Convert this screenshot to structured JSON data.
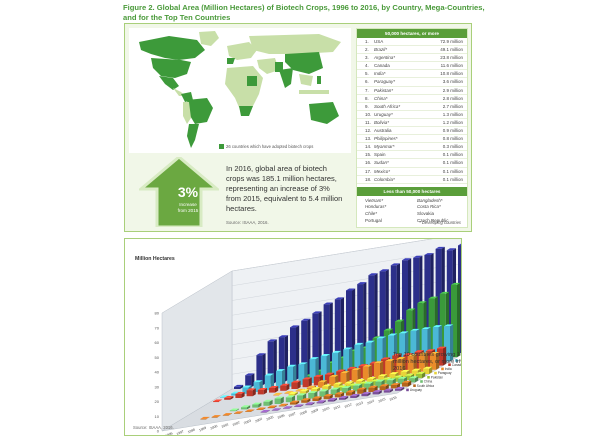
{
  "figure_title": "Figure 2. Global Area (Million Hectares) of Biotech Crops, 1996 to 2016, by Country, Mega-Countries, and for the Top Ten Countries",
  "map": {
    "legend_text": "26 countries which have adopted biotech crops",
    "colors": {
      "adopter": "#3d9a3a",
      "land": "#c8dfa8",
      "ocean": "#ffffff"
    }
  },
  "growth": {
    "percent": "3%",
    "sub_line1": "Increase",
    "sub_line2": "from 2015",
    "blurb": "In 2016, global area of biotech crops was 185.1 million hectares, representing an increase of 3% from 2015, equivalent to 5.4 million hectares.",
    "source": "Source: ISAAA, 2016."
  },
  "mega_countries": {
    "heading": "50,000 hectares, or more",
    "rows": [
      {
        "rank": "1.",
        "name": "USA",
        "value": "72.9 million"
      },
      {
        "rank": "2.",
        "name": "Brazil*",
        "value": "49.1 million"
      },
      {
        "rank": "3.",
        "name": "Argentina*",
        "value": "23.8 million"
      },
      {
        "rank": "4.",
        "name": "Canada",
        "value": "11.6 million"
      },
      {
        "rank": "5.",
        "name": "India*",
        "value": "10.8 million"
      },
      {
        "rank": "6.",
        "name": "Paraguay*",
        "value": "3.6 million"
      },
      {
        "rank": "7.",
        "name": "Pakistan*",
        "value": "2.9 million"
      },
      {
        "rank": "8.",
        "name": "China*",
        "value": "2.8 million"
      },
      {
        "rank": "9.",
        "name": "South Africa*",
        "value": "2.7 million"
      },
      {
        "rank": "10.",
        "name": "Uruguay*",
        "value": "1.3 million"
      },
      {
        "rank": "11.",
        "name": "Bolivia*",
        "value": "1.2 million"
      },
      {
        "rank": "12.",
        "name": "Australia",
        "value": "0.9 million"
      },
      {
        "rank": "13.",
        "name": "Philippines*",
        "value": "0.8 million"
      },
      {
        "rank": "14.",
        "name": "Myanmar*",
        "value": "0.3 million"
      },
      {
        "rank": "15.",
        "name": "Spain",
        "value": "0.1 million"
      },
      {
        "rank": "16.",
        "name": "Sudan*",
        "value": "0.1 million"
      },
      {
        "rank": "17.",
        "name": "Mexico*",
        "value": "0.1 million"
      },
      {
        "rank": "18.",
        "name": "Colombia*",
        "value": "0.1 million"
      }
    ]
  },
  "small_countries": {
    "heading": "Less than 50,000 hectares",
    "col1": [
      "Vietnam*",
      "Honduras*",
      "Chile*",
      "Portugal"
    ],
    "col2": [
      "Bangladesh*",
      "Costa Rica*",
      "Slovakia",
      "Czech Republic"
    ],
    "note": "* Developing countries"
  },
  "chart_data": {
    "type": "bar",
    "title": "",
    "ylabel": "Million Hectares",
    "yticks": [
      "0",
      "10",
      "20",
      "30",
      "40",
      "50",
      "60",
      "70",
      "80"
    ],
    "ylim": [
      0,
      80
    ],
    "categories": [
      "1996",
      "1997",
      "1998",
      "1999",
      "2000",
      "2001",
      "2002",
      "2003",
      "2004",
      "2005",
      "2006",
      "2007",
      "2008",
      "2009",
      "2010",
      "2011",
      "2012",
      "2013",
      "2014",
      "2015",
      "2016"
    ],
    "series": [
      {
        "name": "USA",
        "color": "#2c2f8a",
        "values": [
          1.5,
          8.1,
          20.5,
          28.7,
          30.3,
          35.7,
          39.0,
          42.8,
          47.6,
          49.8,
          54.6,
          57.7,
          62.5,
          64.0,
          66.8,
          69.0,
          69.5,
          70.1,
          73.1,
          70.9,
          72.9
        ]
      },
      {
        "name": "Brazil",
        "color": "#3a9a3a",
        "values": [
          0,
          0,
          0,
          0,
          0,
          0,
          0,
          3.0,
          5.0,
          9.4,
          11.5,
          15.0,
          15.8,
          21.4,
          25.4,
          30.3,
          36.6,
          40.3,
          42.2,
          44.2,
          49.1
        ]
      },
      {
        "name": "Argentina",
        "color": "#4bb8d6",
        "values": [
          0.1,
          1.4,
          4.3,
          6.7,
          10.0,
          11.8,
          13.5,
          13.9,
          16.2,
          17.1,
          18.0,
          19.1,
          21.0,
          21.3,
          22.9,
          23.7,
          23.9,
          24.4,
          24.3,
          24.5,
          23.8
        ]
      },
      {
        "name": "Canada",
        "color": "#c0392b",
        "values": [
          0.1,
          1.3,
          2.8,
          4.0,
          3.0,
          3.2,
          3.5,
          4.4,
          5.4,
          5.8,
          6.1,
          7.0,
          7.6,
          8.2,
          8.8,
          10.4,
          11.6,
          10.8,
          11.6,
          11.0,
          11.6
        ]
      },
      {
        "name": "India",
        "color": "#e98c2b",
        "values": [
          0,
          0,
          0,
          0,
          0,
          0,
          0.1,
          0.1,
          0.5,
          1.3,
          3.8,
          6.2,
          7.6,
          8.4,
          9.4,
          10.6,
          10.8,
          11.0,
          11.6,
          11.6,
          10.8
        ]
      },
      {
        "name": "Paraguay",
        "color": "#e7d43a",
        "values": [
          0,
          0,
          0,
          0,
          0,
          0,
          0,
          0,
          1.2,
          1.8,
          2.0,
          2.6,
          2.7,
          2.2,
          2.6,
          2.8,
          3.4,
          3.6,
          3.9,
          3.6,
          3.6
        ]
      },
      {
        "name": "Pakistan",
        "color": "#9cc33a",
        "values": [
          0,
          0,
          0,
          0,
          0,
          0,
          0,
          0,
          0,
          0,
          0,
          0,
          0,
          2.4,
          2.4,
          2.6,
          2.8,
          2.8,
          2.9,
          2.9,
          2.9
        ]
      },
      {
        "name": "China",
        "color": "#6fbf73",
        "values": [
          0,
          0,
          0,
          0,
          0.5,
          1.5,
          2.1,
          2.8,
          3.7,
          3.3,
          3.5,
          3.8,
          3.8,
          3.7,
          3.5,
          3.9,
          4.0,
          4.2,
          3.9,
          3.7,
          2.8
        ]
      },
      {
        "name": "South Africa",
        "color": "#b5651d",
        "values": [
          0,
          0,
          0.1,
          0.1,
          0.2,
          0.2,
          0.3,
          0.4,
          0.5,
          0.5,
          1.4,
          1.8,
          1.8,
          2.1,
          2.2,
          2.3,
          2.9,
          2.9,
          2.7,
          2.3,
          2.7
        ]
      },
      {
        "name": "Uruguay",
        "color": "#7a4e9a",
        "values": [
          0,
          0,
          0,
          0,
          0,
          0,
          0,
          0,
          0.3,
          0.3,
          0.4,
          0.5,
          0.7,
          0.8,
          1.1,
          1.3,
          1.4,
          1.5,
          1.6,
          1.4,
          1.3
        ]
      }
    ],
    "note": "Top 10 countries growing 1 million hectares, or more in 2016",
    "source": "Source: ISAAA, 2016."
  }
}
